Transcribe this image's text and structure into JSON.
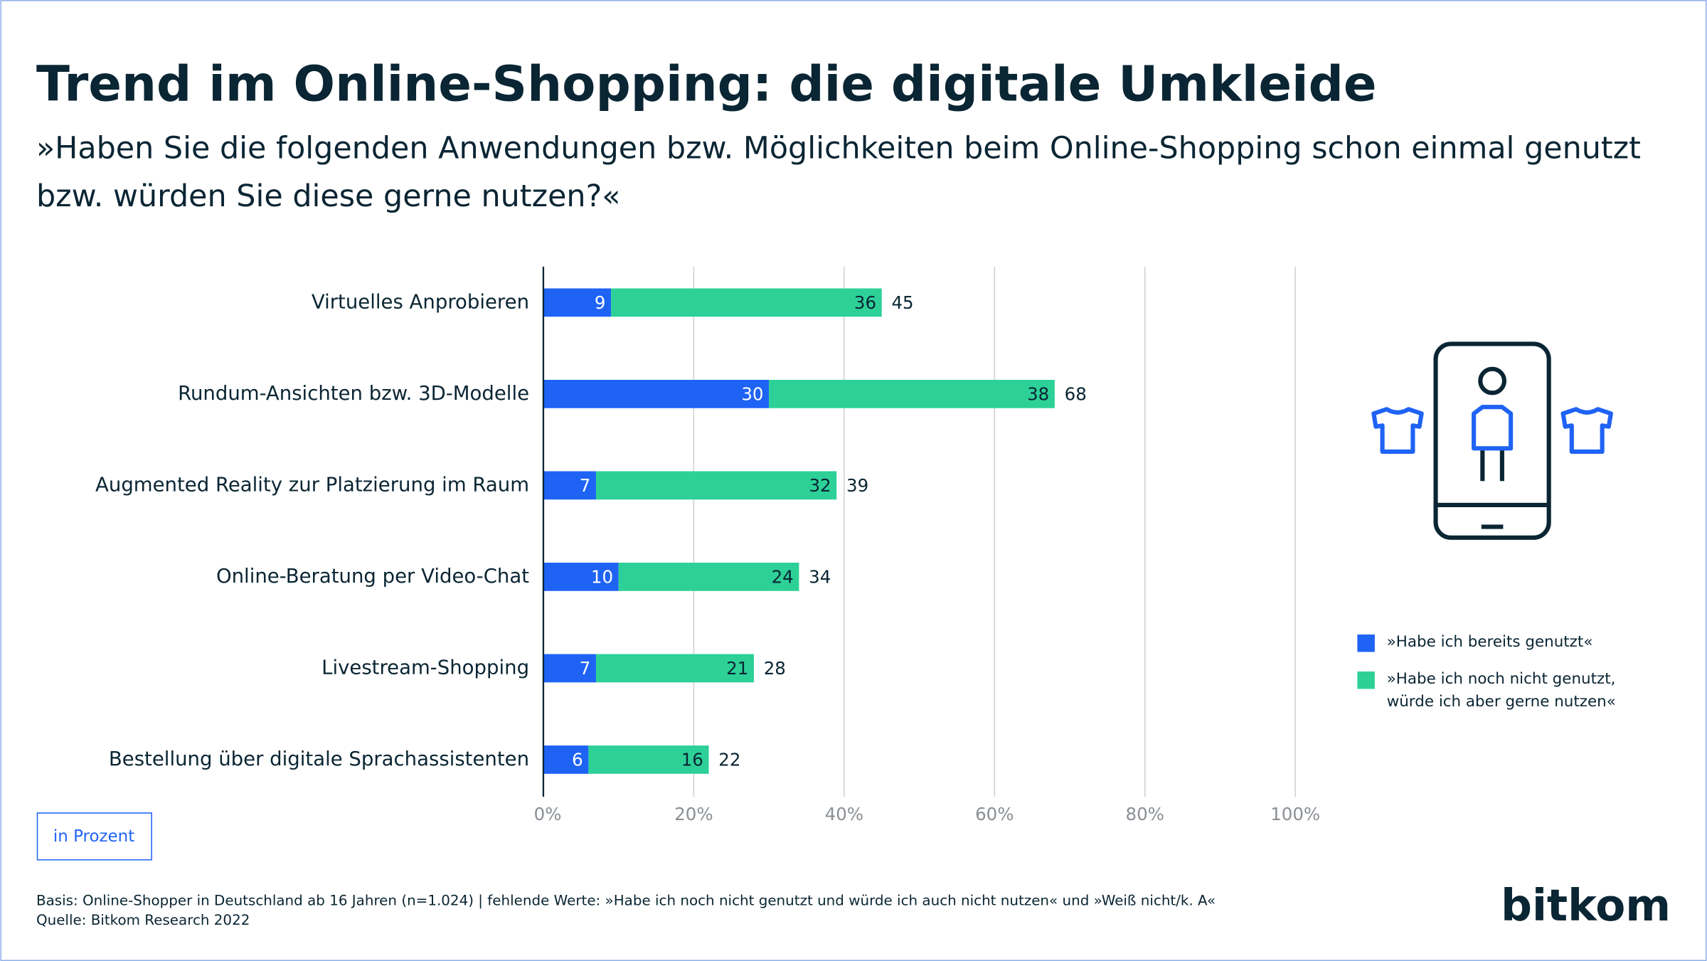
{
  "chart_data": {
    "type": "stacked-bar-horizontal",
    "title": "Trend im Online-Shopping: die digitale Umkleide",
    "subtitle": [
      "»Haben Sie die folgenden Anwendungen bzw. Möglichkeiten beim Online-Shopping schon einmal genutzt",
      "bzw. würden Sie diese gerne nutzen?«"
    ],
    "categories": [
      "Virtuelles Anprobieren",
      "Rundum-Ansichten bzw. 3D-Modelle",
      "Augmented Reality zur Platzierung im Raum",
      "Online-Beratung per Video-Chat",
      "Livestream-Shopping",
      "Bestellung über digitale Sprachassistenten"
    ],
    "series": [
      {
        "name": "»Habe ich bereits genutzt«",
        "color": "#1f63f5",
        "label_color": "#ffffff",
        "values": [
          9,
          30,
          7,
          10,
          7,
          6
        ]
      },
      {
        "name": "»Habe ich noch nicht genutzt, würde ich aber gerne nutzen«",
        "color": "#2dd198",
        "label_color": "#0a2533",
        "values": [
          36,
          38,
          32,
          24,
          21,
          16
        ]
      }
    ],
    "totals": [
      45,
      68,
      39,
      34,
      28,
      22
    ],
    "xlim": [
      0,
      100
    ],
    "xticks": [
      {
        "value": 0,
        "label": "0%"
      },
      {
        "value": 20,
        "label": "20%"
      },
      {
        "value": 40,
        "label": "40%"
      },
      {
        "value": 60,
        "label": "60%"
      },
      {
        "value": 80,
        "label": "80%"
      },
      {
        "value": 100,
        "label": "100%"
      }
    ],
    "grid": true,
    "unit_note": "in Prozent",
    "footnote": [
      "Basis: Online-Shopper in Deutschland ab 16 Jahren  (n=1.024) | fehlende Werte: »Habe ich noch nicht genutzt und würde ich auch nicht nutzen« und »Weiß nicht/k. A«",
      "Quelle: Bitkom Research 2022"
    ],
    "logo": "bitkom"
  }
}
